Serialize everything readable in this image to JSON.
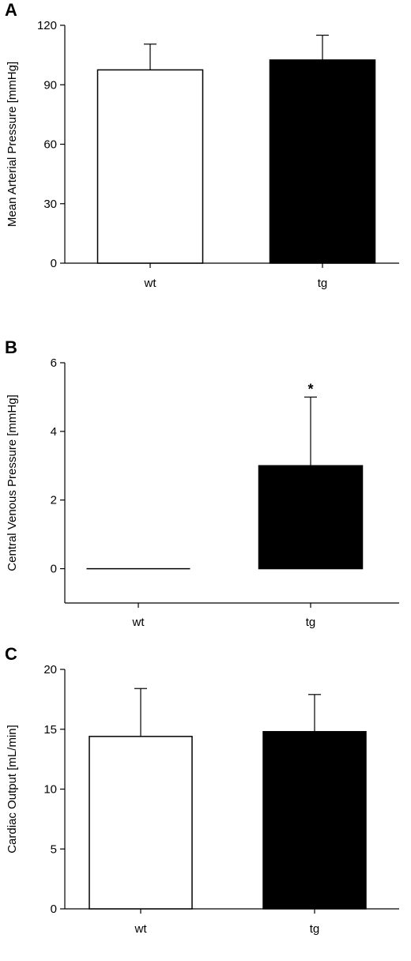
{
  "chart_data": [
    {
      "type": "bar",
      "panel": "A",
      "ylabel": "Mean Arterial Pressure [mmHg]",
      "xlabel": "",
      "categories": [
        "wt",
        "tg"
      ],
      "values": [
        97.5,
        102.5
      ],
      "errors": [
        13,
        12.5
      ],
      "bar_colors": [
        "#ffffff",
        "#000000"
      ],
      "ylim": [
        0,
        120
      ],
      "yticks": [
        0,
        30,
        60,
        90,
        120
      ],
      "annotations": [
        "",
        ""
      ]
    },
    {
      "type": "bar",
      "panel": "B",
      "ylabel": "Central Venous Pressure [mmHg]",
      "xlabel": "",
      "categories": [
        "wt",
        "tg"
      ],
      "values": [
        0,
        3
      ],
      "errors": [
        0,
        2
      ],
      "bar_colors": [
        "#ffffff",
        "#000000"
      ],
      "ylim": [
        -1,
        6
      ],
      "yticks": [
        0,
        2,
        4,
        6
      ],
      "annotations": [
        "",
        "*"
      ]
    },
    {
      "type": "bar",
      "panel": "C",
      "ylabel": "Cardiac Output [mL/min]",
      "xlabel": "",
      "categories": [
        "wt",
        "tg"
      ],
      "values": [
        14.4,
        14.8
      ],
      "errors": [
        4.0,
        3.1
      ],
      "bar_colors": [
        "#ffffff",
        "#000000"
      ],
      "ylim": [
        0,
        20
      ],
      "yticks": [
        0,
        5,
        10,
        15,
        20
      ],
      "annotations": [
        "",
        ""
      ]
    }
  ]
}
